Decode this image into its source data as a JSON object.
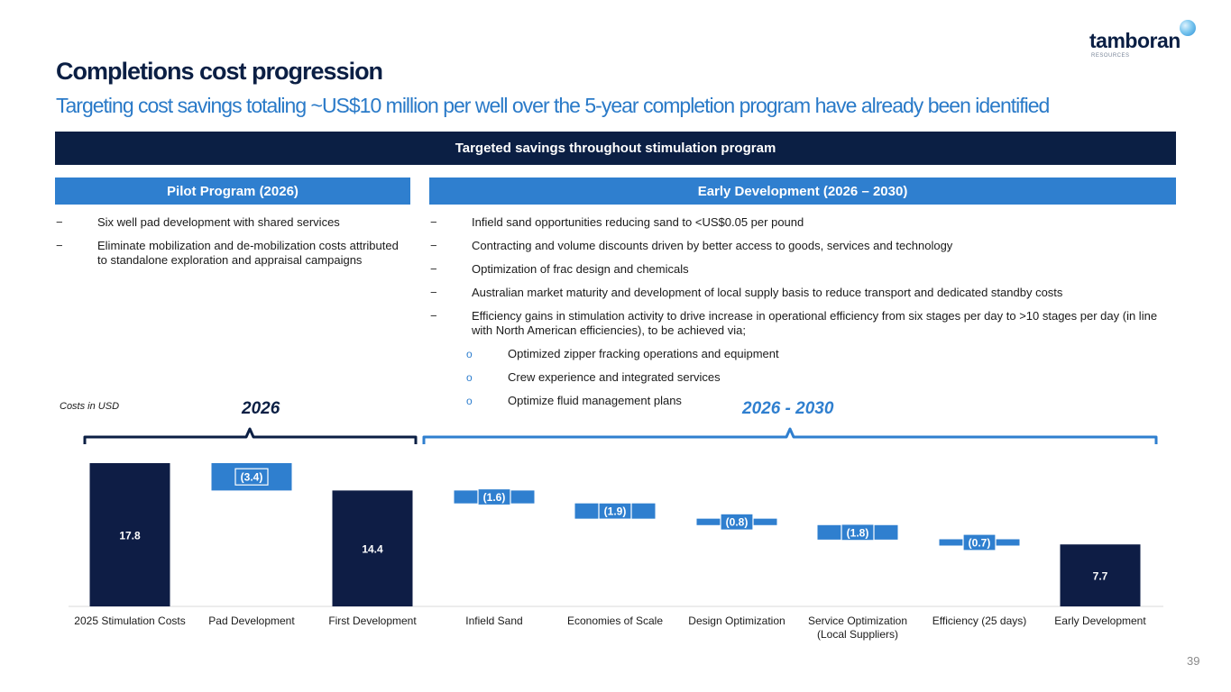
{
  "header": {
    "title": "Completions cost progression",
    "subtitle": "Targeting cost savings totaling ~US$10 million per well over the 5-year completion program have already been identified"
  },
  "logo": {
    "name": "tamboran",
    "sub": "RESOURCES"
  },
  "banner": "Targeted savings throughout stimulation program",
  "pilot": {
    "heading": "Pilot Program (2026)",
    "bullets": [
      "Six well pad development with shared services",
      "Eliminate mobilization and de-mobilization costs attributed to standalone exploration and appraisal campaigns"
    ]
  },
  "early": {
    "heading": "Early Development (2026 – 2030)",
    "bullets": [
      "Infield sand opportunities reducing sand to <US$0.05 per pound",
      "Contracting and volume discounts driven by better access to goods, services and technology",
      "Optimization of frac design and chemicals",
      "Australian market maturity and development of local supply basis to reduce transport and dedicated standby costs",
      "Efficiency gains in stimulation activity to drive increase in operational efficiency from six stages per day to >10 stages per day (in line with North American efficiencies), to be achieved via;"
    ],
    "sub_bullets": [
      "Optimized zipper fracking operations and equipment",
      "Crew experience and integrated services",
      "Optimize fluid management plans"
    ]
  },
  "markers": {
    "dash": "−",
    "circle": "o"
  },
  "costs_note": "Costs in USD",
  "period_labels": {
    "pilot": "2026",
    "early": "2026 - 2030"
  },
  "colors": {
    "navy": "#0b1f44",
    "blue": "#2f7fcf",
    "bar_dark": "#0e1d45"
  },
  "chart_data": {
    "type": "bar",
    "subtype": "waterfall",
    "categories": [
      "2025 Stimulation Costs",
      "Pad Development",
      "First Development",
      "Infield Sand",
      "Economies of Scale",
      "Design Optimization",
      "Service Optimization\n(Local Suppliers)",
      "Efficiency (25 days)",
      "Early Development"
    ],
    "values": [
      17.8,
      -3.4,
      14.4,
      -1.6,
      -1.9,
      -0.8,
      -1.8,
      -0.7,
      7.7
    ],
    "kinds": [
      "total",
      "delta",
      "total",
      "delta",
      "delta",
      "delta",
      "delta",
      "delta",
      "total"
    ],
    "data_labels": [
      "17.8",
      "(3.4)",
      "14.4",
      "(1.6)",
      "(1.9)",
      "(0.8)",
      "(1.8)",
      "(0.7)",
      "7.7"
    ],
    "ylim": [
      0,
      18
    ],
    "unit": "US$ million per well"
  },
  "page_number": "39"
}
